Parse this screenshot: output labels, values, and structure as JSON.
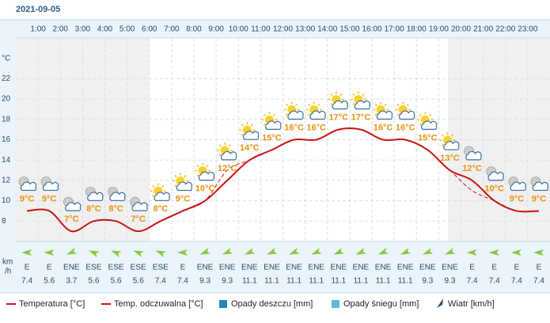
{
  "date": "2021-09-05",
  "chart_data": {
    "type": "line",
    "categories": [
      null,
      "1:00",
      "2:00",
      "3:00",
      "4:00",
      "5:00",
      "6:00",
      "7:00",
      "8:00",
      "9:00",
      "10:00",
      "11:00",
      "12:00",
      "13:00",
      "14:00",
      "15:00",
      "16:00",
      "17:00",
      "18:00",
      "19:00",
      "20:00",
      "21:00",
      "22:00",
      "23:00"
    ],
    "y_unit": "°C",
    "ylim": [
      6,
      26
    ],
    "yticks": [
      8,
      10,
      12,
      14,
      16,
      18,
      20,
      22
    ],
    "grid": true,
    "series": [
      {
        "name": "Temperatura [°C]",
        "color": "#c81414",
        "dashed": false,
        "values": [
          9,
          9,
          7,
          8,
          8,
          7,
          8,
          9,
          10,
          12,
          14,
          15,
          16,
          16,
          17,
          17,
          16,
          16,
          15,
          13,
          12,
          10,
          9,
          9
        ],
        "value_labels": [
          "9°C",
          "9°C",
          "7°C",
          "8°C",
          "8°C",
          "7°C",
          "8°C",
          "9°C",
          "10°C",
          "12°C",
          "14°C",
          "15°C",
          "16°C",
          "16°C",
          "17°C",
          "17°C",
          "16°C",
          "16°C",
          "15°C",
          "13°C",
          "12°C",
          "10°C",
          "9°C",
          "9°C"
        ]
      },
      {
        "name": "Temp. odczuwalna [°C]",
        "color": "#c81414",
        "dashed": true,
        "values": [
          9,
          9,
          7,
          8,
          8,
          7,
          8,
          9,
          10,
          13,
          14,
          15,
          16,
          16,
          17,
          17,
          16,
          16,
          15,
          13,
          11,
          10,
          9,
          9
        ]
      }
    ],
    "other_legend": [
      {
        "name": "Opady deszczu [mm]",
        "color": "#1b87b8"
      },
      {
        "name": "Opady śniegu [mm]",
        "color": "#5bbbd6"
      }
    ],
    "wind": {
      "name": "Wiatr [km/h]",
      "unit_lines": [
        "km",
        "/h"
      ],
      "directions": [
        "E",
        "E",
        "ENE",
        "ESE",
        "ESE",
        "ESE",
        "ESE",
        "E",
        "ENE",
        "ENE",
        "ENE",
        "ENE",
        "ENE",
        "ENE",
        "ENE",
        "ENE",
        "ENE",
        "ENE",
        "ENE",
        "ENE",
        "E",
        "E",
        "E",
        "E"
      ],
      "speeds": [
        7.4,
        5.6,
        3.7,
        5.6,
        5.6,
        5.6,
        7.4,
        7.4,
        9.3,
        9.3,
        11.1,
        11.1,
        11.1,
        11.1,
        11.1,
        11.1,
        11.1,
        11.1,
        9.3,
        9.3,
        7.4,
        7.4,
        7.4,
        7.4
      ]
    }
  }
}
